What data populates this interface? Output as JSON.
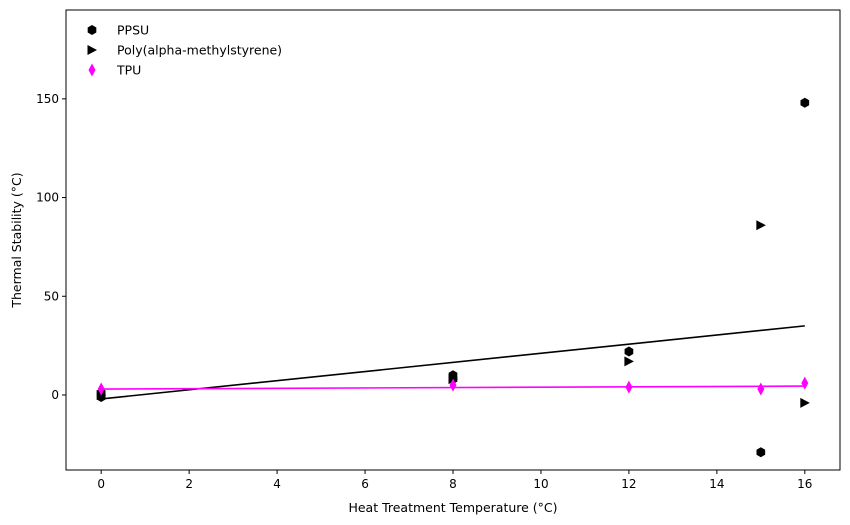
{
  "chart_data": {
    "type": "scatter",
    "title": "",
    "xlabel": "Heat Treatment Temperature (°C)",
    "ylabel": "Thermal Stability (°C)",
    "xlim": [
      -0.8,
      16.8
    ],
    "ylim": [
      -38,
      195
    ],
    "xticks": [
      0,
      2,
      4,
      6,
      8,
      10,
      12,
      14,
      16
    ],
    "yticks": [
      0,
      50,
      100,
      150
    ],
    "grid": false,
    "legend_position": "top-left",
    "series": [
      {
        "name": "PPSU",
        "marker": "hexagon",
        "color": "#000000",
        "points": [
          [
            0,
            -1
          ],
          [
            0,
            1
          ],
          [
            8,
            8
          ],
          [
            8,
            10
          ],
          [
            12,
            22
          ],
          [
            15,
            -29
          ],
          [
            16,
            148
          ]
        ],
        "fit_line": [
          [
            0,
            -2
          ],
          [
            16,
            35
          ]
        ]
      },
      {
        "name": "Poly(alpha-methylstyrene)",
        "marker": "triangle-right",
        "color": "#000000",
        "points": [
          [
            0,
            0
          ],
          [
            8,
            8
          ],
          [
            12,
            17
          ],
          [
            15,
            86
          ],
          [
            16,
            -4
          ]
        ]
      },
      {
        "name": "TPU",
        "marker": "thin-diamond",
        "color": "#ff00ff",
        "points": [
          [
            0,
            3
          ],
          [
            8,
            5
          ],
          [
            12,
            4
          ],
          [
            15,
            3
          ],
          [
            16,
            6
          ]
        ],
        "fit_line": [
          [
            0,
            3
          ],
          [
            16,
            4.5
          ]
        ]
      }
    ]
  }
}
